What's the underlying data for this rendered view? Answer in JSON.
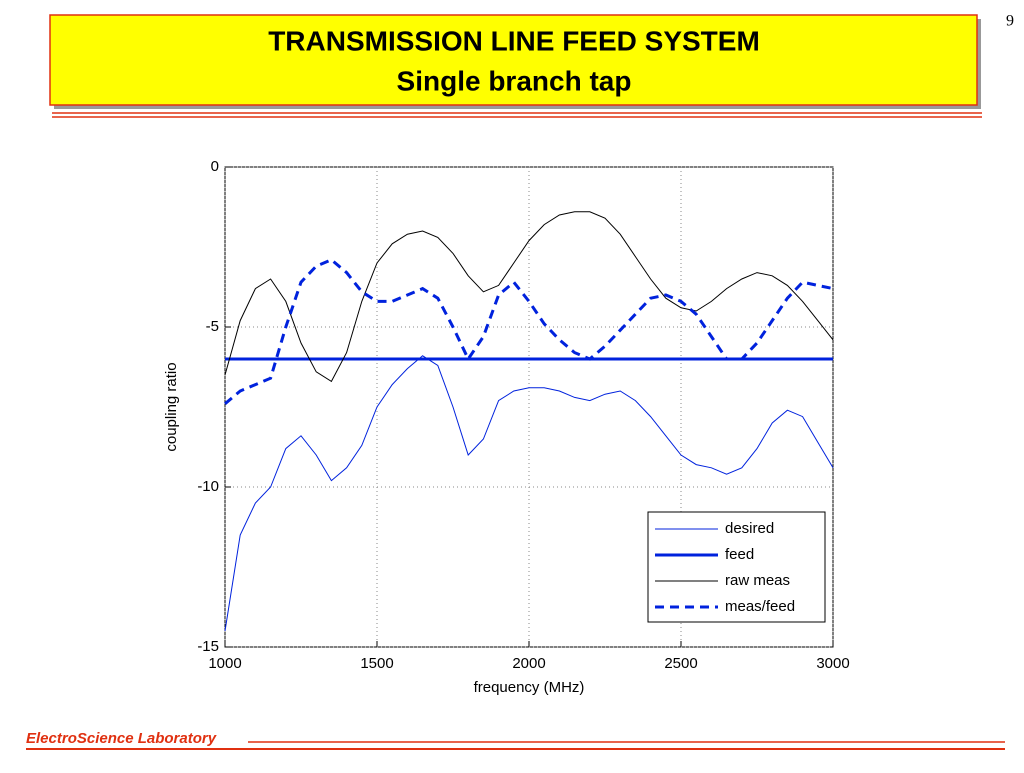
{
  "header": {
    "title": "TRANSMISSION LINE FEED SYSTEM",
    "subtitle": "Single branch tap"
  },
  "page_number": "9",
  "footer": "ElectroScience Laboratory",
  "chart_data": {
    "type": "line",
    "xlabel": "frequency (MHz)",
    "ylabel": "coupling ratio",
    "x": [
      1000,
      1050,
      1100,
      1150,
      1200,
      1250,
      1300,
      1350,
      1400,
      1450,
      1500,
      1550,
      1600,
      1650,
      1700,
      1750,
      1800,
      1850,
      1900,
      1950,
      2000,
      2050,
      2100,
      2150,
      2200,
      2250,
      2300,
      2350,
      2400,
      2450,
      2500,
      2550,
      2600,
      2650,
      2700,
      2750,
      2800,
      2850,
      2900,
      2950,
      3000
    ],
    "series": [
      {
        "name": "desired",
        "color": "#0022dd",
        "width": 1,
        "dash": false,
        "values": [
          -14.5,
          -11.5,
          -10.5,
          -10,
          -8.8,
          -8.4,
          -9,
          -9.8,
          -9.4,
          -8.7,
          -7.5,
          -6.8,
          -6.3,
          -5.9,
          -6.2,
          -7.5,
          -9,
          -8.5,
          -7.3,
          -7,
          -6.9,
          -6.9,
          -7,
          -7.2,
          -7.3,
          -7.1,
          -7,
          -7.3,
          -7.8,
          -8.4,
          -9,
          -9.3,
          -9.4,
          -9.6,
          -9.4,
          -8.8,
          -8,
          -7.6,
          -7.8,
          -8.6,
          -9.4
        ]
      },
      {
        "name": "feed",
        "color": "#0022dd",
        "width": 3,
        "dash": false,
        "values": [
          -6,
          -6,
          -6,
          -6,
          -6,
          -6,
          -6,
          -6,
          -6,
          -6,
          -6,
          -6,
          -6,
          -6,
          -6,
          -6,
          -6,
          -6,
          -6,
          -6,
          -6,
          -6,
          -6,
          -6,
          -6,
          -6,
          -6,
          -6,
          -6,
          -6,
          -6,
          -6,
          -6,
          -6,
          -6,
          -6,
          -6,
          -6,
          -6,
          -6,
          -6
        ]
      },
      {
        "name": "raw meas",
        "color": "#000000",
        "width": 1,
        "dash": false,
        "values": [
          -6.5,
          -4.8,
          -3.8,
          -3.5,
          -4.2,
          -5.5,
          -6.4,
          -6.7,
          -5.8,
          -4.2,
          -3,
          -2.4,
          -2.1,
          -2,
          -2.2,
          -2.7,
          -3.4,
          -3.9,
          -3.7,
          -3,
          -2.3,
          -1.8,
          -1.5,
          -1.4,
          -1.4,
          -1.6,
          -2.1,
          -2.8,
          -3.5,
          -4.1,
          -4.4,
          -4.5,
          -4.2,
          -3.8,
          -3.5,
          -3.3,
          -3.4,
          -3.7,
          -4.2,
          -4.8,
          -5.4
        ]
      },
      {
        "name": "meas/feed",
        "color": "#0022dd",
        "width": 3,
        "dash": true,
        "values": [
          -7.4,
          -7,
          -6.8,
          -6.6,
          -5,
          -3.6,
          -3.1,
          -2.9,
          -3.3,
          -3.9,
          -4.2,
          -4.2,
          -4,
          -3.8,
          -4.1,
          -5,
          -6,
          -5.3,
          -4,
          -3.6,
          -4.2,
          -4.9,
          -5.4,
          -5.8,
          -6,
          -5.6,
          -5.1,
          -4.6,
          -4.1,
          -4,
          -4.2,
          -4.6,
          -5.3,
          -6,
          -6,
          -5.5,
          -4.8,
          -4.1,
          -3.6,
          -3.7,
          -3.8
        ]
      }
    ],
    "xlim": [
      1000,
      3000
    ],
    "xticks": [
      1000,
      1500,
      2000,
      2500,
      3000
    ],
    "ylim": [
      -15,
      0
    ],
    "yticks": [
      0,
      -5,
      -10,
      -15
    ],
    "grid": true,
    "legend": "lower right"
  }
}
